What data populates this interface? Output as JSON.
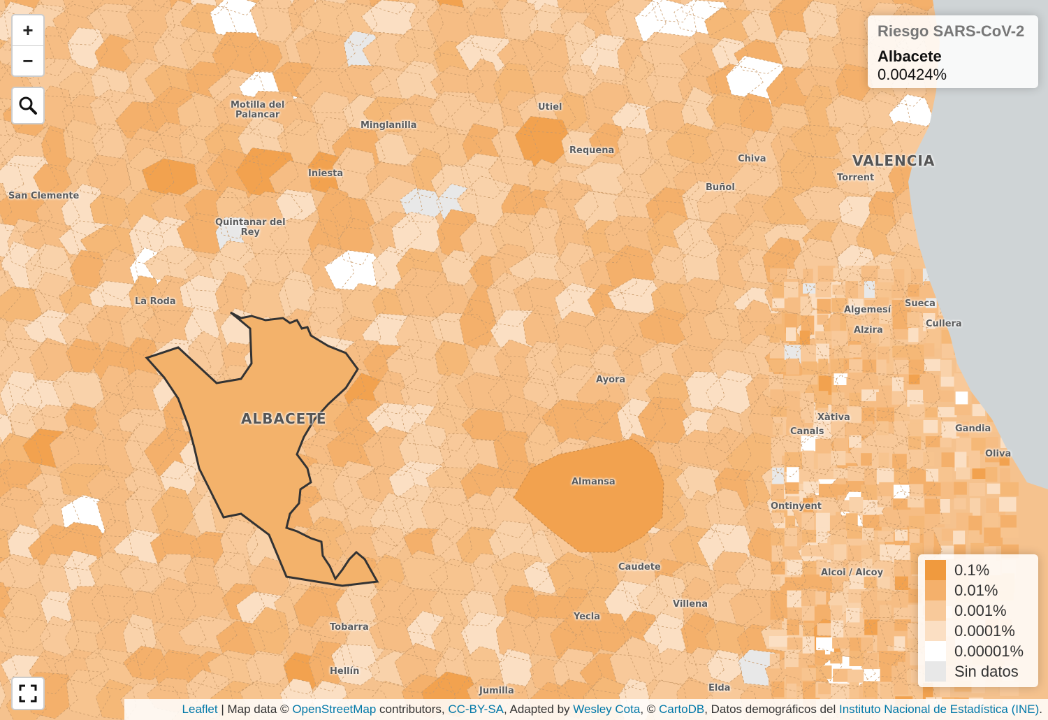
{
  "info": {
    "title": "Riesgo SARS-CoV-2",
    "region": "Albacete",
    "value": "0.00424%"
  },
  "selected_region_label": "ALBACETE",
  "places": [
    {
      "name": "Motilla del",
      "line2": "Palancar"
    },
    {
      "name": "Minglanilla"
    },
    {
      "name": "Utiel"
    },
    {
      "name": "Requena"
    },
    {
      "name": "Chiva"
    },
    {
      "name": "VALENCIA",
      "big": true
    },
    {
      "name": "Torrent"
    },
    {
      "name": "Buñol"
    },
    {
      "name": "Iniesta"
    },
    {
      "name": "San Clemente"
    },
    {
      "name": "Quintanar del",
      "line2": "Rey"
    },
    {
      "name": "La Roda"
    },
    {
      "name": "Algemesí"
    },
    {
      "name": "Sueca"
    },
    {
      "name": "Alzira"
    },
    {
      "name": "Cullera"
    },
    {
      "name": "Ayora"
    },
    {
      "name": "Xàtiva"
    },
    {
      "name": "Canals"
    },
    {
      "name": "Gandia"
    },
    {
      "name": "Oliva"
    },
    {
      "name": "Almansa"
    },
    {
      "name": "Ontinyent"
    },
    {
      "name": "Caudete"
    },
    {
      "name": "Alcoi / Alcoy"
    },
    {
      "name": "Villena"
    },
    {
      "name": "Yecla"
    },
    {
      "name": "Tobarra"
    },
    {
      "name": "Hellín"
    },
    {
      "name": "Jumilla"
    },
    {
      "name": "Elda"
    }
  ],
  "legend": [
    {
      "label": "0.1%",
      "color": "#f09a3e"
    },
    {
      "label": "0.01%",
      "color": "#f4b06b"
    },
    {
      "label": "0.001%",
      "color": "#f8c99a"
    },
    {
      "label": "0.0001%",
      "color": "#fbdfc3"
    },
    {
      "label": "0.00001%",
      "color": "#ffffff"
    },
    {
      "label": "Sin datos",
      "color": "#e8e8e8"
    }
  ],
  "controls": {
    "zoom_in": "+",
    "zoom_out": "−"
  },
  "attribution": {
    "leaflet": "Leaflet",
    "sep1": " | Map data © ",
    "osm": "OpenStreetMap",
    "t2": " contributors, ",
    "license": "CC-BY-SA",
    "t3": ", Adapted by ",
    "author": "Wesley Cota",
    "t4": ", © ",
    "carto": "CartoDB",
    "t5": ", Datos demográficos del ",
    "ine": "Instituto Nacional de Estadística (INE)",
    "t6": "."
  },
  "colors": {
    "sea": "#cfd4d6",
    "base": "#f5c28e",
    "selected": "#f3b26b",
    "outline": "#333333"
  }
}
